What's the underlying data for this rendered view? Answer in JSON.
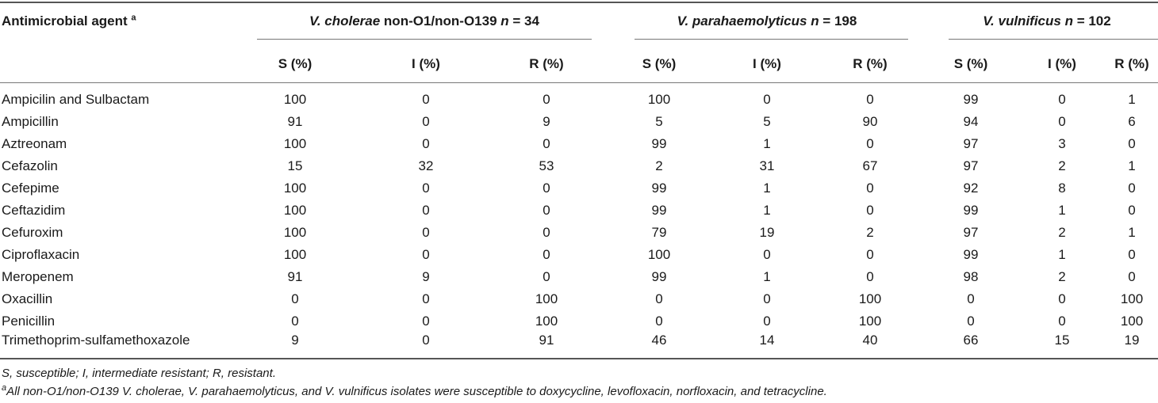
{
  "table": {
    "first_col_header": "Antimicrobial agent",
    "first_col_sup": "a",
    "groups": [
      {
        "italic": "V. cholerae",
        "plain": " non-O1/non-O139 ",
        "n_italic": "n",
        "n_value": " = 34"
      },
      {
        "italic": "V. parahaemolyticus",
        "plain": " ",
        "n_italic": "n",
        "n_value": " = 198"
      },
      {
        "italic": "V. vulnificus",
        "plain": " ",
        "n_italic": "n",
        "n_value": " = 102"
      }
    ],
    "sub_headers": [
      "S (%)",
      "I (%)",
      "R (%)",
      "S (%)",
      "I (%)",
      "R (%)",
      "S (%)",
      "I (%)",
      "R (%)"
    ],
    "rows": [
      {
        "agent": "Ampicilin and Sulbactam",
        "values": [
          "100",
          "0",
          "0",
          "100",
          "0",
          "0",
          "99",
          "0",
          "1"
        ]
      },
      {
        "agent": "Ampicillin",
        "values": [
          "91",
          "0",
          "9",
          "5",
          "5",
          "90",
          "94",
          "0",
          "6"
        ]
      },
      {
        "agent": "Aztreonam",
        "values": [
          "100",
          "0",
          "0",
          "99",
          "1",
          "0",
          "97",
          "3",
          "0"
        ]
      },
      {
        "agent": "Cefazolin",
        "values": [
          "15",
          "32",
          "53",
          "2",
          "31",
          "67",
          "97",
          "2",
          "1"
        ]
      },
      {
        "agent": "Cefepime",
        "values": [
          "100",
          "0",
          "0",
          "99",
          "1",
          "0",
          "92",
          "8",
          "0"
        ]
      },
      {
        "agent": "Ceftazidim",
        "values": [
          "100",
          "0",
          "0",
          "99",
          "1",
          "0",
          "99",
          "1",
          "0"
        ]
      },
      {
        "agent": "Cefuroxim",
        "values": [
          "100",
          "0",
          "0",
          "79",
          "19",
          "2",
          "97",
          "2",
          "1"
        ]
      },
      {
        "agent": "Ciproflaxacin",
        "values": [
          "100",
          "0",
          "0",
          "100",
          "0",
          "0",
          "99",
          "1",
          "0"
        ]
      },
      {
        "agent": "Meropenem",
        "values": [
          "91",
          "9",
          "0",
          "99",
          "1",
          "0",
          "98",
          "2",
          "0"
        ]
      },
      {
        "agent": "Oxacillin",
        "values": [
          "0",
          "0",
          "100",
          "0",
          "0",
          "100",
          "0",
          "0",
          "100"
        ]
      },
      {
        "agent": "Penicillin",
        "values": [
          "0",
          "0",
          "100",
          "0",
          "0",
          "100",
          "0",
          "0",
          "100"
        ]
      },
      {
        "agent": "Trimethoprim-sulfamethoxazole",
        "values": [
          "9",
          "0",
          "91",
          "46",
          "14",
          "40",
          "66",
          "15",
          "19"
        ]
      }
    ]
  },
  "footnotes": {
    "abbreviations": "S, susceptible; I, intermediate resistant; R, resistant.",
    "note_marker": "a",
    "note_text": "All non-O1/non-O139 V. cholerae, V. parahaemolyticus, and V. vulnificus isolates were susceptible to doxycycline, levofloxacin, norfloxacin, and tetracycline."
  }
}
